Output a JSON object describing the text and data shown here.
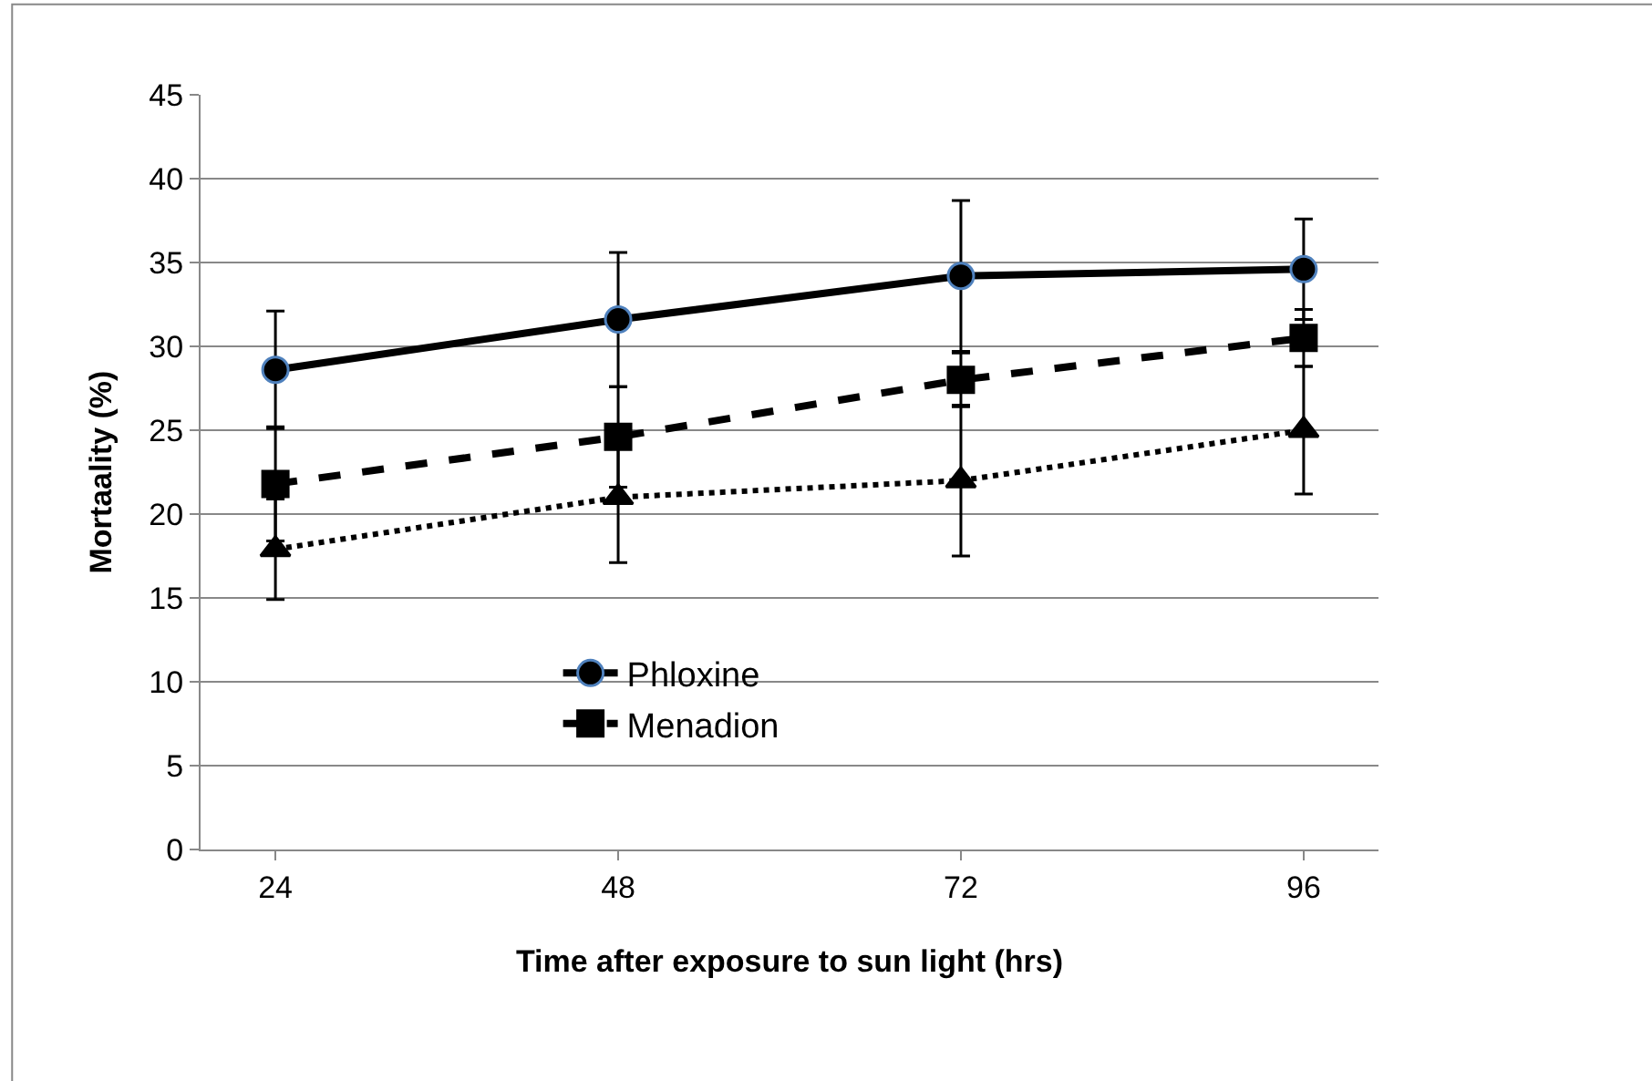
{
  "chart_data": {
    "type": "line",
    "xlabel": "Time after exposure to sun light (hrs)",
    "ylabel": "Mortaality (%)",
    "categories": [
      "24",
      "48",
      "72",
      "96"
    ],
    "series": [
      {
        "name": "Phloxine",
        "color": "#000000",
        "values": [
          28.6,
          31.6,
          34.2,
          34.6
        ],
        "errors": [
          3.5,
          4.0,
          4.5,
          3.0
        ],
        "marker": "circle",
        "line_style": "solid"
      },
      {
        "name": "Menadion",
        "color": "#000000",
        "values": [
          21.8,
          24.6,
          28.0,
          30.5
        ],
        "errors": [
          3.4,
          3.0,
          1.6,
          1.7
        ],
        "marker": "square",
        "line_style": "dashed"
      },
      {
        "color": "#000000",
        "values": [
          17.9,
          21.0,
          22.0,
          25.0
        ],
        "errors": [
          3.0,
          3.9,
          4.5,
          3.8
        ],
        "marker": "triangle",
        "line_style": "dotted"
      }
    ],
    "ylim": [
      0,
      45
    ],
    "yticks": [
      0,
      5,
      10,
      15,
      20,
      25,
      30,
      35,
      40,
      45
    ],
    "grid": "y",
    "legend": "bottom"
  }
}
